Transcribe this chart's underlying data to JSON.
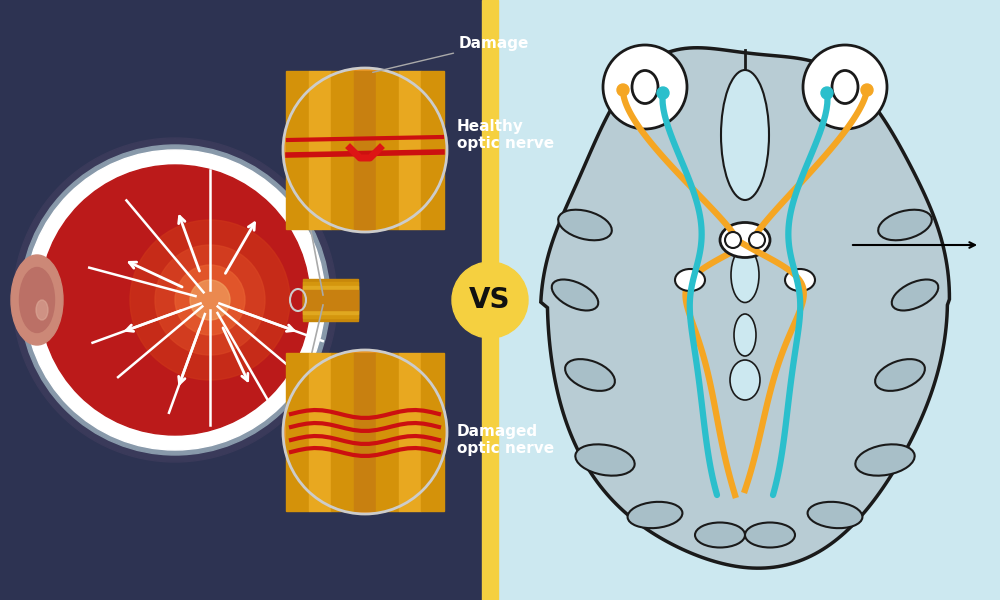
{
  "left_bg": "#2d3352",
  "right_bg": "#cce8f0",
  "divider_color": "#f5d040",
  "vs_text": "VS",
  "vs_bg": "#f5d040",
  "vs_text_color": "#111111",
  "label_damage": "Damage",
  "label_healthy": "Healthy\noptic nerve",
  "label_damaged": "Damaged\noptic nerve",
  "label_color": "#ffffff",
  "orange_nerve": "#f5a623",
  "cyan_nerve": "#2bbfcc",
  "brain_fill": "#b8ccd4",
  "brain_outline": "#1a1a1a",
  "fig_w": 10.0,
  "fig_h": 6.0,
  "dpi": 100
}
